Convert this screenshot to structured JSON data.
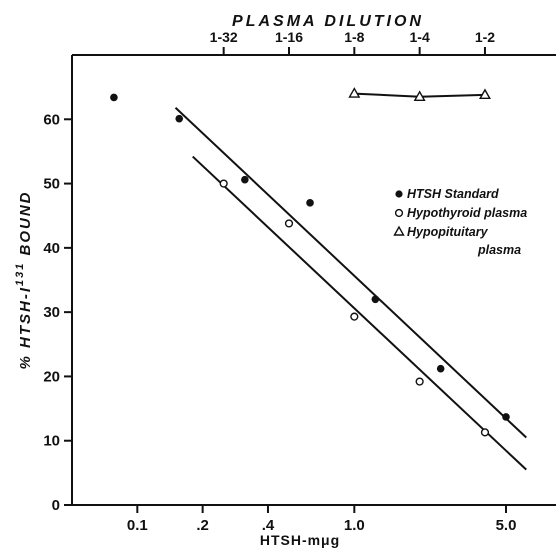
{
  "chart_data": {
    "type": "scatter",
    "title": "PLASMA DILUTION",
    "xlabel": "HTSH-mμg",
    "ylabel_parts": {
      "pre": "% HTSH-I",
      "sup": "131",
      "post": " BOUND"
    },
    "x_scale": "log",
    "xlim": [
      0.05,
      8.5
    ],
    "ylim": [
      0,
      70
    ],
    "x_ticks": [
      {
        "value": 0.1,
        "label": "0.1"
      },
      {
        "value": 0.2,
        "label": ".2"
      },
      {
        "value": 0.4,
        "label": ".4"
      },
      {
        "value": 1.0,
        "label": "1.0"
      },
      {
        "value": 5.0,
        "label": "5.0"
      }
    ],
    "y_ticks": [
      {
        "value": 0,
        "label": "0"
      },
      {
        "value": 10,
        "label": "10"
      },
      {
        "value": 20,
        "label": "20"
      },
      {
        "value": 30,
        "label": "30"
      },
      {
        "value": 40,
        "label": "40"
      },
      {
        "value": 50,
        "label": "50"
      },
      {
        "value": 60,
        "label": "60"
      }
    ],
    "top_axis": {
      "label": "PLASMA DILUTION",
      "ticks": [
        {
          "value": 0.25,
          "label": "1-32"
        },
        {
          "value": 0.5,
          "label": "1-16"
        },
        {
          "value": 1.0,
          "label": "1-8"
        },
        {
          "value": 2.0,
          "label": "1-4"
        },
        {
          "value": 4.0,
          "label": "1-2"
        }
      ]
    },
    "series": [
      {
        "name": "HTSH Standard",
        "marker": "filled-circle",
        "points": [
          {
            "x": 0.078,
            "y": 63.4
          },
          {
            "x": 0.156,
            "y": 60.1
          },
          {
            "x": 0.313,
            "y": 50.6
          },
          {
            "x": 0.625,
            "y": 47.0
          },
          {
            "x": 1.25,
            "y": 32.0
          },
          {
            "x": 2.5,
            "y": 21.2
          },
          {
            "x": 5.0,
            "y": 13.7
          }
        ],
        "fit_line": [
          {
            "x": 0.15,
            "y": 61.8
          },
          {
            "x": 6.2,
            "y": 10.5
          }
        ]
      },
      {
        "name": "Hypothyroid plasma",
        "marker": "open-circle",
        "points": [
          {
            "x": 0.25,
            "y": 50.0
          },
          {
            "x": 0.5,
            "y": 43.8
          },
          {
            "x": 1.0,
            "y": 29.3
          },
          {
            "x": 2.0,
            "y": 19.2
          },
          {
            "x": 4.0,
            "y": 11.3
          }
        ],
        "fit_line": [
          {
            "x": 0.18,
            "y": 54.2
          },
          {
            "x": 6.2,
            "y": 5.5
          }
        ]
      },
      {
        "name": "Hypopituitary plasma",
        "legend_lines": [
          "Hypopituitary",
          "plasma"
        ],
        "marker": "open-triangle",
        "points": [
          {
            "x": 1.0,
            "y": 64.0
          },
          {
            "x": 2.0,
            "y": 63.5
          },
          {
            "x": 4.0,
            "y": 63.8
          }
        ],
        "connect": true
      }
    ],
    "legend_placement": "right"
  }
}
